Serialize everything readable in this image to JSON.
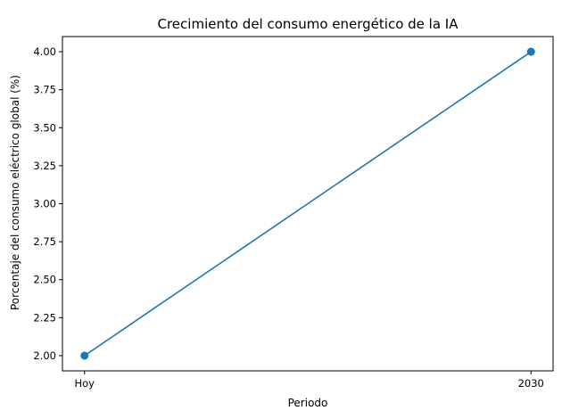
{
  "chart_data": {
    "type": "line",
    "title": "Crecimiento del consumo energético de la IA",
    "xlabel": "Periodo",
    "ylabel": "Porcentaje del consumo eléctrico global (%)",
    "categories": [
      "Hoy",
      "2030"
    ],
    "series": [
      {
        "values": [
          2.0,
          4.0
        ]
      }
    ],
    "ylim": [
      1.9,
      4.1
    ],
    "yticks": [
      "2.00",
      "2.25",
      "2.50",
      "2.75",
      "3.00",
      "3.25",
      "3.50",
      "3.75",
      "4.00"
    ],
    "grid": false,
    "legend": "none",
    "markers": "circle",
    "colors": {
      "line": "#1f77b4",
      "marker": "#1f77b4",
      "axes": "#000000"
    }
  }
}
